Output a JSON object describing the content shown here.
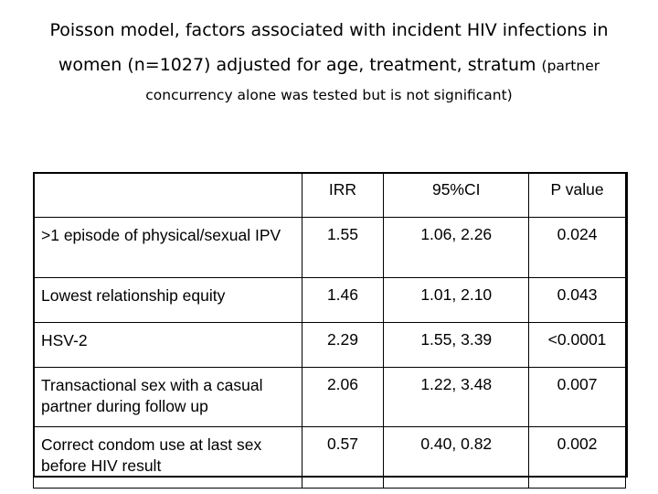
{
  "title": {
    "line1": "Poisson model, factors associated with incident HIV infections in",
    "line2_main": "women (n=1027) adjusted for age, treatment, stratum",
    "line2_small": "(partner",
    "line3": "concurrency alone was tested but is not significant)"
  },
  "table": {
    "headers": [
      "",
      "IRR",
      "95%CI",
      "P value"
    ],
    "rows": [
      {
        "factor": ">1 episode of physical/sexual IPV",
        "irr": "1.55",
        "ci": "1.06, 2.26",
        "p": "0.024"
      },
      {
        "factor": "Lowest relationship equity",
        "irr": "1.46",
        "ci": "1.01, 2.10",
        "p": "0.043"
      },
      {
        "factor": "HSV-2",
        "irr": "2.29",
        "ci": "1.55, 3.39",
        "p": "<0.0001"
      },
      {
        "factor": "Transactional sex with a casual partner during follow up",
        "irr": "2.06",
        "ci": "1.22, 3.48",
        "p": "0.007"
      },
      {
        "factor": "Correct condom use at last sex before HIV result",
        "irr": "0.57",
        "ci": "0.40, 0.82",
        "p": "0.002"
      }
    ]
  }
}
